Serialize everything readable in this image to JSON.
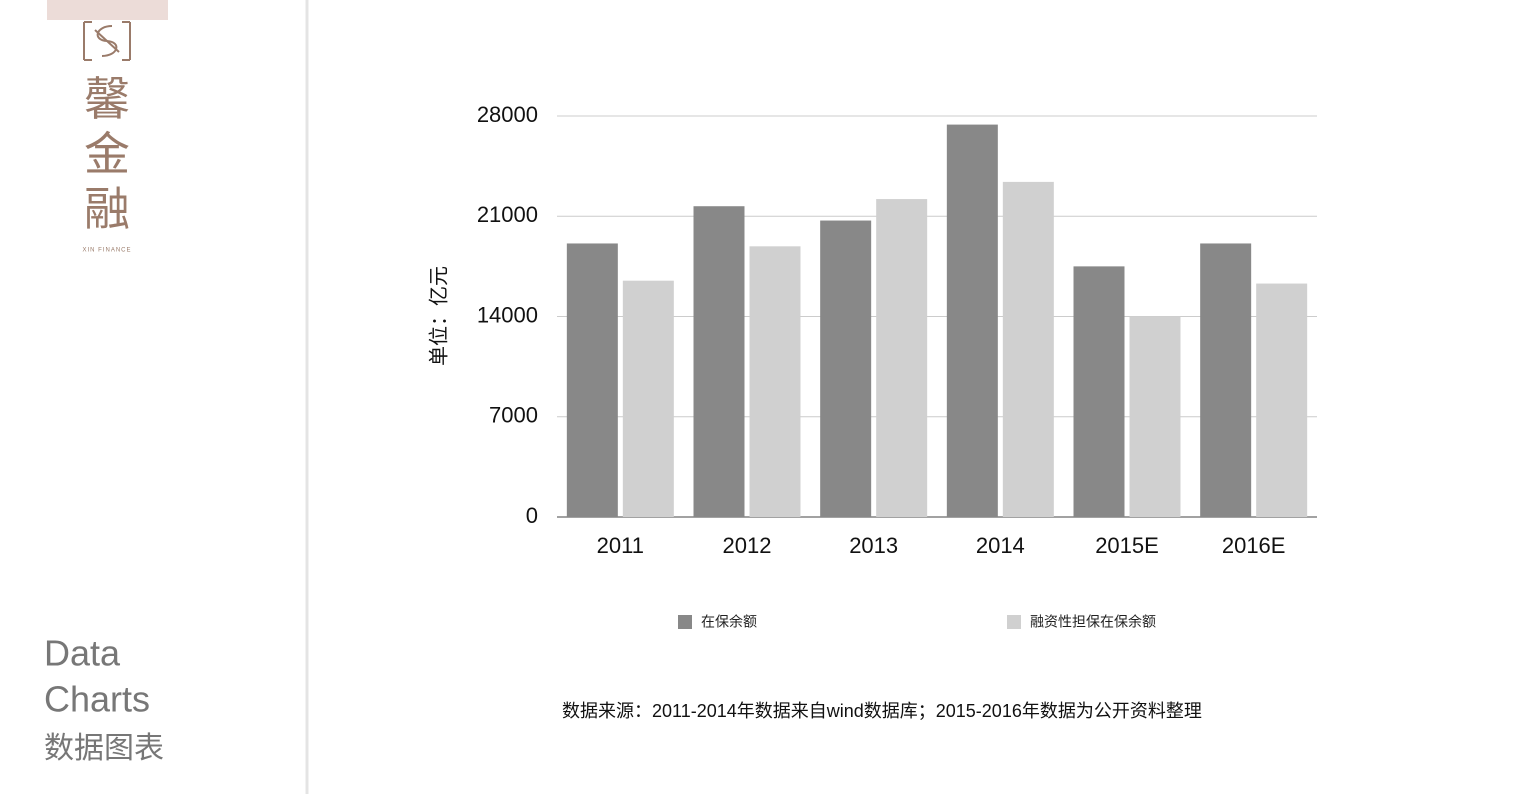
{
  "logo": {
    "name": "馨金融",
    "subtitle": "XIN FINANCE"
  },
  "sidebar": {
    "line1": "Data",
    "line2": "Charts",
    "line3": "数据图表"
  },
  "chart_data": {
    "type": "bar",
    "y_label": "单位：亿元",
    "categories": [
      "2011",
      "2012",
      "2013",
      "2014",
      "2015E",
      "2016E"
    ],
    "series": [
      {
        "name": "在保余额",
        "color": "#888888",
        "values": [
          19100,
          21700,
          20700,
          27400,
          17500,
          19100
        ]
      },
      {
        "name": "融资性担保在保余额",
        "color": "#d0d0d0",
        "values": [
          16500,
          18900,
          22200,
          23400,
          14000,
          16300
        ]
      }
    ],
    "ylim": [
      0,
      28000
    ],
    "yticks": [
      0,
      7000,
      14000,
      21000,
      28000
    ],
    "grid": true,
    "legend": "bottom",
    "note": "数据来源：2011-2014年数据来自wind数据库；2015-2016年数据为公开资料整理"
  }
}
